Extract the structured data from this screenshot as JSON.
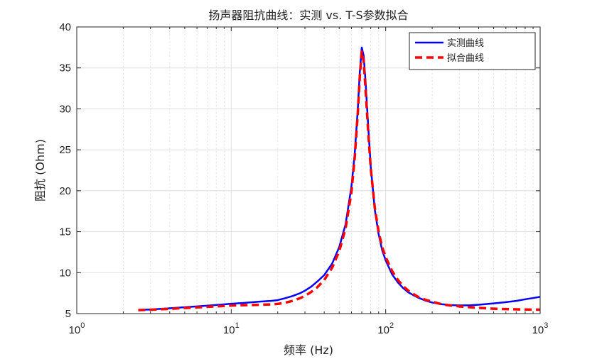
{
  "chart_data": {
    "type": "line",
    "title": "扬声器阻抗曲线：实测 vs. T-S参数拟合",
    "xlabel": "频率 (Hz)",
    "ylabel": "阻抗 (Ohm)",
    "xscale": "log",
    "xlim": [
      1,
      1000
    ],
    "ylim": [
      5,
      40
    ],
    "yticks": [
      5,
      10,
      15,
      20,
      25,
      30,
      35,
      40
    ],
    "yticklabels": [
      "5",
      "10",
      "15",
      "20",
      "25",
      "30",
      "35",
      "40"
    ],
    "xticks": [
      {
        "value": 1,
        "base": "10",
        "exp": "0"
      },
      {
        "value": 10,
        "base": "10",
        "exp": "1"
      },
      {
        "value": 100,
        "base": "10",
        "exp": "2"
      },
      {
        "value": 1000,
        "base": "10",
        "exp": "3"
      }
    ],
    "grid": true,
    "legend_position": "top-right",
    "series": [
      {
        "name": "实测曲线",
        "color": "#0000ff",
        "style": "solid",
        "points": [
          [
            2.5,
            5.45
          ],
          [
            3,
            5.5
          ],
          [
            4,
            5.65
          ],
          [
            5,
            5.78
          ],
          [
            6,
            5.88
          ],
          [
            8,
            6.05
          ],
          [
            10,
            6.2
          ],
          [
            12,
            6.3
          ],
          [
            15,
            6.45
          ],
          [
            18,
            6.55
          ],
          [
            20,
            6.65
          ],
          [
            22,
            6.85
          ],
          [
            25,
            7.15
          ],
          [
            28,
            7.5
          ],
          [
            30,
            7.8
          ],
          [
            33,
            8.3
          ],
          [
            36,
            8.9
          ],
          [
            40,
            9.7
          ],
          [
            45,
            11.1
          ],
          [
            50,
            13.1
          ],
          [
            55,
            15.9
          ],
          [
            60,
            20.5
          ],
          [
            63,
            24.5
          ],
          [
            66,
            30
          ],
          [
            68,
            34.5
          ],
          [
            70,
            37.5
          ],
          [
            72,
            36.5
          ],
          [
            74,
            33.5
          ],
          [
            77,
            28
          ],
          [
            80,
            23
          ],
          [
            85,
            17.7
          ],
          [
            90,
            14.7
          ],
          [
            95,
            12.7
          ],
          [
            100,
            11.5
          ],
          [
            110,
            9.8
          ],
          [
            120,
            8.8
          ],
          [
            130,
            8.1
          ],
          [
            140,
            7.6
          ],
          [
            160,
            7
          ],
          [
            180,
            6.6
          ],
          [
            200,
            6.35
          ],
          [
            230,
            6.15
          ],
          [
            260,
            6.05
          ],
          [
            300,
            6.0
          ],
          [
            350,
            6.02
          ],
          [
            400,
            6.08
          ],
          [
            500,
            6.25
          ],
          [
            600,
            6.4
          ],
          [
            700,
            6.55
          ],
          [
            800,
            6.75
          ],
          [
            900,
            6.9
          ],
          [
            1000,
            7.05
          ]
        ]
      },
      {
        "name": "拟合曲线",
        "color": "#ff0000",
        "style": "dashed",
        "points": [
          [
            2.5,
            5.42
          ],
          [
            3,
            5.47
          ],
          [
            4,
            5.58
          ],
          [
            5,
            5.68
          ],
          [
            6,
            5.76
          ],
          [
            8,
            5.88
          ],
          [
            10,
            5.98
          ],
          [
            12,
            6.03
          ],
          [
            15,
            6.07
          ],
          [
            18,
            6.12
          ],
          [
            20,
            6.18
          ],
          [
            22,
            6.3
          ],
          [
            25,
            6.55
          ],
          [
            28,
            6.9
          ],
          [
            30,
            7.15
          ],
          [
            33,
            7.65
          ],
          [
            36,
            8.2
          ],
          [
            40,
            9.1
          ],
          [
            45,
            10.6
          ],
          [
            50,
            12.6
          ],
          [
            55,
            15.4
          ],
          [
            60,
            19.8
          ],
          [
            63,
            24
          ],
          [
            66,
            29.5
          ],
          [
            68,
            34
          ],
          [
            70,
            37
          ],
          [
            72,
            35.8
          ],
          [
            74,
            32.5
          ],
          [
            77,
            27.3
          ],
          [
            80,
            22.8
          ],
          [
            85,
            17.9
          ],
          [
            90,
            15
          ],
          [
            95,
            13.1
          ],
          [
            100,
            11.9
          ],
          [
            110,
            10.2
          ],
          [
            120,
            9.1
          ],
          [
            130,
            8.35
          ],
          [
            140,
            7.8
          ],
          [
            160,
            7.1
          ],
          [
            180,
            6.7
          ],
          [
            200,
            6.45
          ],
          [
            230,
            6.15
          ],
          [
            260,
            6.0
          ],
          [
            300,
            5.88
          ],
          [
            350,
            5.78
          ],
          [
            400,
            5.7
          ],
          [
            500,
            5.6
          ],
          [
            600,
            5.55
          ],
          [
            700,
            5.52
          ],
          [
            800,
            5.5
          ],
          [
            900,
            5.49
          ],
          [
            1000,
            5.48
          ]
        ]
      }
    ]
  }
}
